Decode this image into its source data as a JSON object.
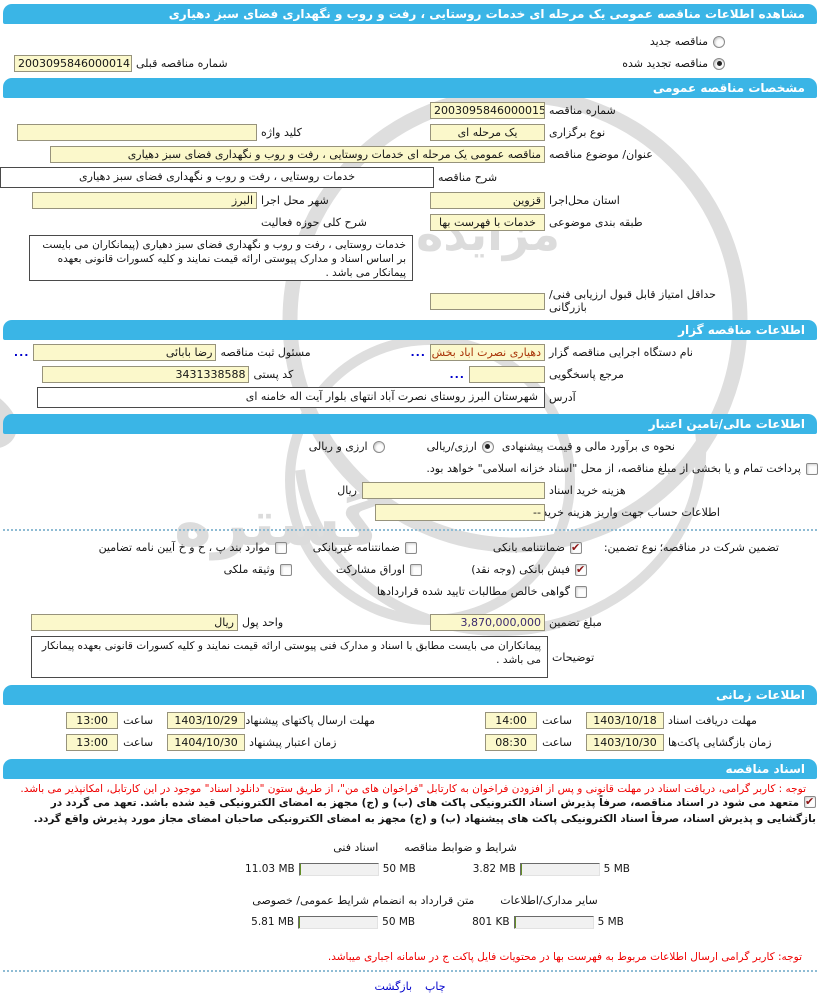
{
  "title": "مشاهده اطلاعات مناقصه عمومی یک مرحله ای خدمات روستایی ، رفت و روب و نگهداری فضای سبز دهیاری",
  "colors": {
    "header_bar": "#3ab5e6",
    "field_bg": "#fbf8cb",
    "progress_green": "#99c93c",
    "notice_red": "#ef0000",
    "link_blue": "#0000cc"
  },
  "top": {
    "new_label": "مناقصه جدید",
    "new_checked": false,
    "renew_label": "مناقصه تجدید شده",
    "renew_checked": true,
    "prev_label": "شماره مناقصه قبلی",
    "prev_value": "2003095846000014"
  },
  "sections": {
    "specs": "مشخصات مناقصه عمومی",
    "agency": "اطلاعات مناقصه گزار",
    "financial": "اطلاعات مالی/تامین اعتبار",
    "timing": "اطلاعات زمانی",
    "documents": "اسناد مناقصه"
  },
  "specs": {
    "number_label": "شماره مناقصه",
    "number_value": "2003095846000015",
    "type_label": "نوع برگزاری",
    "type_value": "یک مرحله ای",
    "keyword_label": "کلید واژه",
    "keyword_value": "",
    "subject_label": "عنوان/ موضوع مناقصه",
    "subject_value": "مناقصه عمومی یک مرحله ای خدمات روستایی ، رفت و روب و نگهداری فضای سبز دهیاری",
    "desc_label": "شرح مناقصه",
    "desc_value": "خدمات روستایی ، رفت و روب و نگهداری فضای سبز دهیاری",
    "province_label": "استان محل‌اجرا",
    "province_value": "قزوین",
    "city_label": "شهر محل اجرا",
    "city_value": "البرز",
    "category_label": "طبقه بندی موضوعی",
    "category_value": "خدمات با فهرست بها",
    "activity_label": "شرح کلی حوزه فعالیت",
    "activity_value": "خدمات روستایی ، رفت و روب و نگهداری فضای سبز دهیاری (پیمانکاران می بایست بر اساس اسناد و مدارک پیوستی ارائه قیمت نمایند و کلیه کسورات قانونی بعهده پیمانکار می باشد .",
    "min_score_label": "حداقل امتیاز قابل قبول ارزیابی فنی/ بازرگانی",
    "min_score_value": ""
  },
  "agency": {
    "org_label": "نام دستگاه اجرایی مناقصه گزار",
    "org_value": "دهیاری نصرت اباد بخش مرک",
    "registrar_label": "مسئول ثبت مناقصه",
    "registrar_value": "رضا بابائی",
    "reference_label": "مرجع پاسخگویی",
    "reference_value": "",
    "postal_label": "کد پستی",
    "postal_value": "3431338588",
    "address_label": "آدرس",
    "address_value": "شهرستان البرز روستای نصرت آباد انتهای بلوار آیت اله خامنه ای",
    "more_button": "..."
  },
  "financial": {
    "estimate_label": "نحوه ی برآورد مالی و قیمت  پیشنهادی",
    "estimate_opt1": "ارزی/ریالی",
    "estimate_opt1_checked": true,
    "estimate_opt2": "ارزی و ریالی",
    "estimate_opt2_checked": false,
    "treasury_label": "پرداخت تمام و یا بخشی از مبلغ  مناقصه، از محل \"اسناد خزانه اسلامی\" خواهد بود.",
    "treasury_checked": false,
    "doc_fee_label": "هزینه خرید اسناد",
    "doc_fee_value": "",
    "doc_fee_unit": "ریال",
    "account_label": "اطلاعات حساب جهت واریز هزینه خریداسناد",
    "account_value": "--"
  },
  "guarantee": {
    "intro": "تضمین شرکت در مناقصه؛",
    "type_label": "نوع  تضمین:",
    "options": [
      {
        "label": "ضمانتنامه بانکی",
        "checked": true
      },
      {
        "label": "ضمانتنامه غیربانکی",
        "checked": false
      },
      {
        "label": "موارد بند پ ، ح و خ آیین نامه تضامین",
        "checked": false
      },
      {
        "label": "فیش بانکی (وجه نقد)",
        "checked": true
      },
      {
        "label": "اوراق مشارکت",
        "checked": false
      },
      {
        "label": "وثیقه ملکی",
        "checked": false
      },
      {
        "label": "گواهی خالص مطالبات تایید شده قراردادها",
        "checked": false
      }
    ],
    "amount_label": "مبلغ  تضمین",
    "amount_value": "3,870,000,000",
    "currency_label": "واحد پول",
    "currency_value": "ریال",
    "notes_label": "توضیحات",
    "notes_value": "پیمانکاران می بایست مطابق با اسناد و مدارک فنی پیوستی ارائه قیمت نمایند و کلیه کسورات قانونی بعهده پیمانکار می باشد ."
  },
  "timing": {
    "hour_label": "ساعت",
    "rows": [
      {
        "right_label": "مهلت دریافت اسناد",
        "right_date": "1403/10/18",
        "right_time": "14:00",
        "left_label": "مهلت ارسال پاکتهای پیشنهاد",
        "left_date": "1403/10/29",
        "left_time": "13:00"
      },
      {
        "right_label": "زمان بازگشایی پاکت‌ها",
        "right_date": "1403/10/30",
        "right_time": "08:30",
        "left_label": "زمان اعتبار پیشنهاد",
        "left_date": "1404/10/30",
        "left_time": "13:00"
      }
    ]
  },
  "documents": {
    "notice": "توجه : کاربر گرامی، دریافت اسناد در مهلت قانونی و پس از افزودن فراخوان به کارتابل \"فراخوان های من\"، از طریق ستون \"دانلود اسناد\" موجود در این کارتابل، امکانپذیر می باشد.",
    "commitment_checked": true,
    "commitment": "متعهد می شود در اسناد مناقصه، صرفاً پذیرش اسناد الکترونیکی پاکت های (ب) و (ج) مجهز به امضای الکترونیکی قید شده باشد. تعهد می گردد در بازگشایی و پذیرش اسناد، صرفاً اسناد الکترونیکی پاکت های پیشنهاد (ب) و (ج) مجهز به امضای الکترونیکی صاحبان امضای مجاز مورد پذیرش واقع گردد.",
    "uploads": [
      {
        "label": "شرایط و ضوابط مناقصه",
        "used": "3.82 MB",
        "max": "5 MB",
        "pct": 76
      },
      {
        "label": "اسناد فنی",
        "used": "11.03 MB",
        "max": "50 MB",
        "pct": 22
      },
      {
        "label": "سایر مدارک/اطلاعات",
        "used": "801 KB",
        "max": "5 MB",
        "pct": 16
      },
      {
        "label": "متن قرارداد به  انضمام شرایط عمومی/ خصوصی",
        "used": "5.81 MB",
        "max": "50 MB",
        "pct": 12
      }
    ],
    "footer_notice": "توجه: کاربر گرامی ارسال اطلاعات مربوط به فهرست بها در محتویات فایل پاکت ج در سامانه اجباری میباشد."
  },
  "footer": {
    "print": "چاپ",
    "back": "بازگشت"
  }
}
